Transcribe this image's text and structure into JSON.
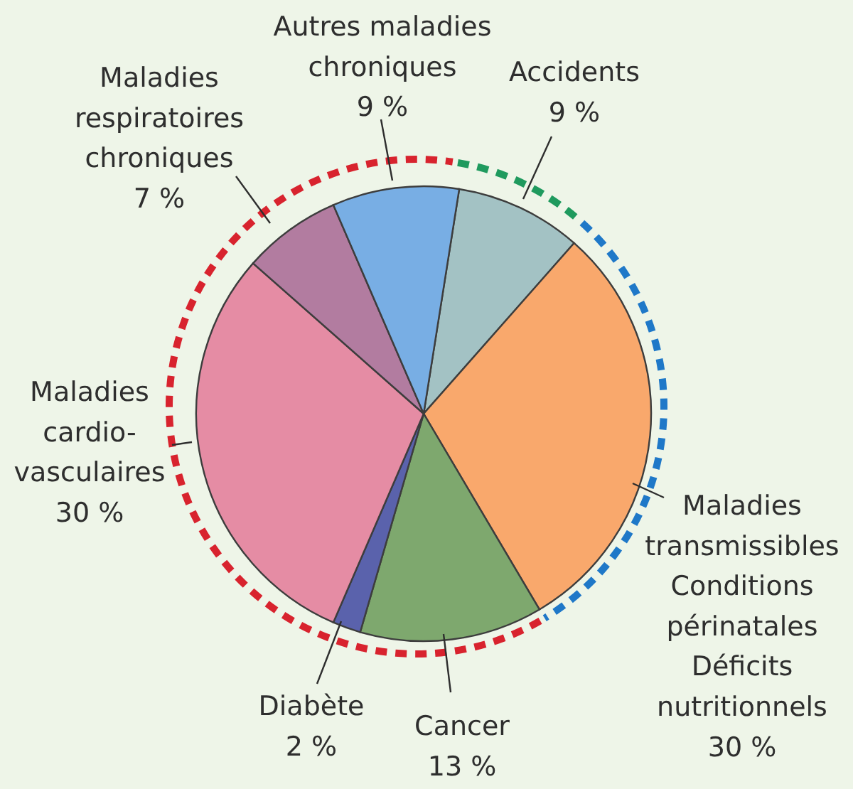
{
  "chart_data": {
    "type": "pie",
    "categories": [
      "Accidents",
      "Maladies\ntransmissibles\nConditions\npérinatales\nDéficits\nnutritionnels",
      "Cancer",
      "Diabète",
      "Maladies\ncardio-\nvasculaires",
      "Maladies\nrespiratoires\nchroniques",
      "Autres maladies\nchroniques"
    ],
    "values": [
      9,
      30,
      13,
      2,
      30,
      7,
      9
    ],
    "value_labels": [
      "9 %",
      "30 %",
      "13 %",
      "2 %",
      "30 %",
      "7 %",
      "9 %"
    ],
    "colors": [
      "#a3c2c4",
      "#f9a86c",
      "#7ea86e",
      "#5a62ac",
      "#e58ca4",
      "#b27ca0",
      "#78aee4"
    ]
  }
}
